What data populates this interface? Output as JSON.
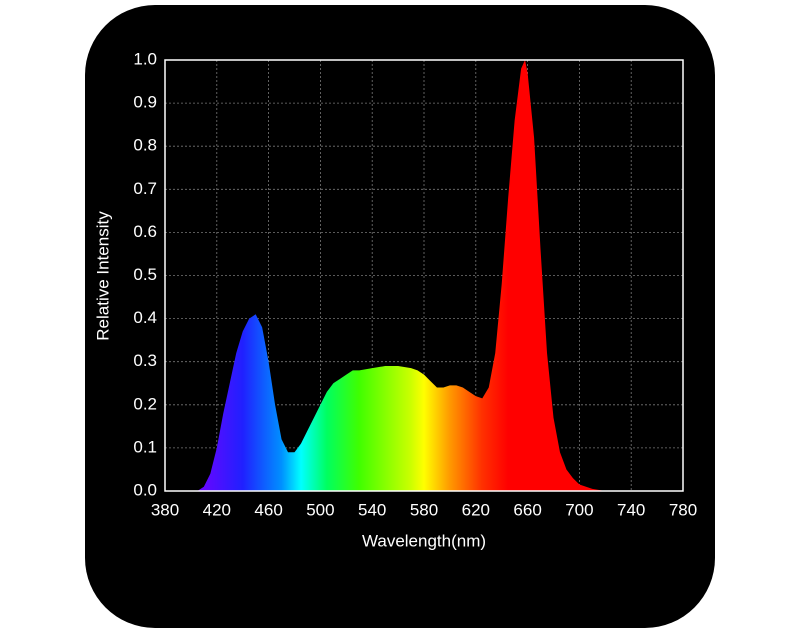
{
  "chart_data": {
    "type": "area",
    "xlabel": "Wavelength(nm)",
    "ylabel": "Relative Intensity",
    "x": [
      405,
      410,
      415,
      420,
      425,
      430,
      435,
      440,
      445,
      450,
      455,
      460,
      465,
      470,
      475,
      480,
      485,
      490,
      495,
      500,
      505,
      510,
      515,
      520,
      525,
      530,
      540,
      550,
      560,
      570,
      575,
      580,
      585,
      590,
      595,
      600,
      605,
      610,
      615,
      620,
      625,
      630,
      635,
      640,
      645,
      650,
      655,
      658,
      660,
      665,
      670,
      675,
      680,
      685,
      690,
      695,
      700,
      710,
      720
    ],
    "values": [
      0,
      0.01,
      0.04,
      0.1,
      0.18,
      0.25,
      0.32,
      0.37,
      0.4,
      0.41,
      0.38,
      0.3,
      0.2,
      0.12,
      0.09,
      0.09,
      0.11,
      0.14,
      0.17,
      0.2,
      0.23,
      0.25,
      0.26,
      0.27,
      0.28,
      0.28,
      0.285,
      0.29,
      0.29,
      0.285,
      0.28,
      0.27,
      0.255,
      0.24,
      0.24,
      0.245,
      0.245,
      0.24,
      0.23,
      0.22,
      0.215,
      0.24,
      0.32,
      0.48,
      0.68,
      0.86,
      0.98,
      1.0,
      0.97,
      0.82,
      0.56,
      0.32,
      0.17,
      0.09,
      0.05,
      0.03,
      0.015,
      0.005,
      0
    ],
    "xlim": [
      380,
      780
    ],
    "xticks": [
      380,
      420,
      460,
      500,
      540,
      580,
      620,
      660,
      700,
      740,
      780
    ],
    "ylim": [
      0,
      1
    ],
    "yticks": [
      {
        "value": 0,
        "label": "0.0"
      },
      0.1,
      0.2,
      0.3,
      0.4,
      0.5,
      0.6,
      0.7,
      0.8,
      0.9,
      {
        "value": 1,
        "label": "1.0"
      }
    ],
    "grid": true
  }
}
